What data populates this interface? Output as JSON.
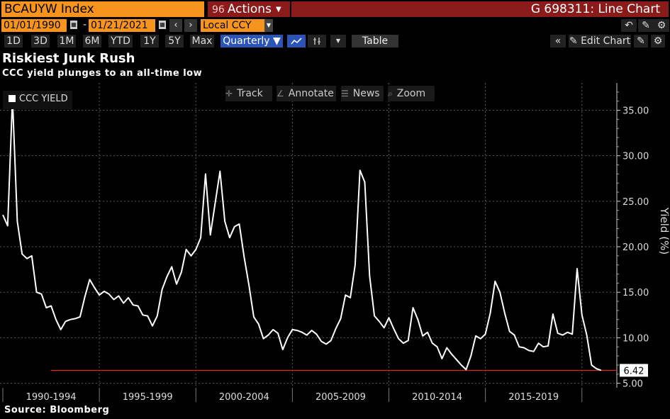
{
  "header": {
    "ticker": "BCAUYW Index",
    "actions_label": "Actions",
    "window_title": "G 698311: Line Chart"
  },
  "range": {
    "start_date": "01/01/1990",
    "end_date": "01/21/2021",
    "currency": "Local CCY"
  },
  "periods": [
    "1D",
    "3D",
    "1M",
    "6M",
    "YTD",
    "1Y",
    "5Y",
    "Max"
  ],
  "toolbar": {
    "frequency": "Quarterly ▼",
    "table_label": "Table",
    "edit_chart_label": "Edit Chart"
  },
  "chart_header": {
    "title": "Riskiest Junk Rush",
    "subtitle": "CCC yield plunges to an all-time low"
  },
  "chart_tools": {
    "track": "Track",
    "annotate": "Annotate",
    "news": "News",
    "zoom": "Zoom"
  },
  "footer": {
    "source": "Source: Bloomberg"
  },
  "colors": {
    "ticker_bg": "#f7941d",
    "title_bar_bg": "#8b1a1a",
    "selected_bg": "#2b54b8",
    "line": "#ffffff",
    "reference_line": "#e2231a"
  },
  "chart_data": {
    "type": "line",
    "legend": [
      "CCC YIELD"
    ],
    "ylabel": "Yield (%)",
    "ylim": [
      4.5,
      38
    ],
    "yticks": [
      5,
      10,
      15,
      20,
      25,
      30,
      35
    ],
    "ytick_labels": [
      "5.00",
      "10.00",
      "15.00",
      "20.00",
      "25.00",
      "30.00",
      "35.00"
    ],
    "x_categories": [
      "1990-1994",
      "1995-1999",
      "2000-2004",
      "2005-2009",
      "2010-2014",
      "2015-2019"
    ],
    "last_value_label": "6.42",
    "last_value": 6.42,
    "series": [
      {
        "name": "CCC YIELD",
        "x": [
          1990.0,
          1990.25,
          1990.5,
          1990.75,
          1991.0,
          1991.25,
          1991.5,
          1991.75,
          1992.0,
          1992.25,
          1992.5,
          1992.75,
          1993.0,
          1993.25,
          1993.5,
          1993.75,
          1994.0,
          1994.25,
          1994.5,
          1994.75,
          1995.0,
          1995.25,
          1995.5,
          1995.75,
          1996.0,
          1996.25,
          1996.5,
          1996.75,
          1997.0,
          1997.25,
          1997.5,
          1997.75,
          1998.0,
          1998.25,
          1998.5,
          1998.75,
          1999.0,
          1999.25,
          1999.5,
          1999.75,
          2000.0,
          2000.25,
          2000.5,
          2000.75,
          2001.0,
          2001.25,
          2001.5,
          2001.75,
          2002.0,
          2002.25,
          2002.5,
          2002.75,
          2003.0,
          2003.25,
          2003.5,
          2003.75,
          2004.0,
          2004.25,
          2004.5,
          2004.75,
          2005.0,
          2005.25,
          2005.5,
          2005.75,
          2006.0,
          2006.25,
          2006.5,
          2006.75,
          2007.0,
          2007.25,
          2007.5,
          2007.75,
          2008.0,
          2008.25,
          2008.5,
          2008.75,
          2009.0,
          2009.25,
          2009.5,
          2009.75,
          2010.0,
          2010.25,
          2010.5,
          2010.75,
          2011.0,
          2011.25,
          2011.5,
          2011.75,
          2012.0,
          2012.25,
          2012.5,
          2012.75,
          2013.0,
          2013.25,
          2013.5,
          2013.75,
          2014.0,
          2014.25,
          2014.5,
          2014.75,
          2015.0,
          2015.25,
          2015.5,
          2015.75,
          2016.0,
          2016.25,
          2016.5,
          2016.75,
          2017.0,
          2017.25,
          2017.5,
          2017.75,
          2018.0,
          2018.25,
          2018.5,
          2018.75,
          2019.0,
          2019.25,
          2019.5,
          2019.75,
          2020.0,
          2020.25,
          2020.5,
          2020.75,
          2021.0
        ],
        "values": [
          23.5,
          22.3,
          36.3,
          22.8,
          19.2,
          18.7,
          19.0,
          15.0,
          14.8,
          13.3,
          13.5,
          12.0,
          10.9,
          11.8,
          12.0,
          12.1,
          12.3,
          14.5,
          16.4,
          15.5,
          14.7,
          15.1,
          14.8,
          14.2,
          14.6,
          13.8,
          14.4,
          13.6,
          13.5,
          12.5,
          12.4,
          11.3,
          12.4,
          15.3,
          16.7,
          17.8,
          15.9,
          17.2,
          19.7,
          19.0,
          19.7,
          21.0,
          28.0,
          21.3,
          24.8,
          28.3,
          22.8,
          21.0,
          22.2,
          22.5,
          18.9,
          15.8,
          12.3,
          11.5,
          9.9,
          10.3,
          10.9,
          10.5,
          8.7,
          10.0,
          10.9,
          10.8,
          10.6,
          10.3,
          10.8,
          10.4,
          9.6,
          9.3,
          9.7,
          11.0,
          12.1,
          14.7,
          14.4,
          18.0,
          28.4,
          27.1,
          16.8,
          12.4,
          11.8,
          11.1,
          12.2,
          11.0,
          9.9,
          9.4,
          9.7,
          13.3,
          12.0,
          10.2,
          10.6,
          9.4,
          9.0,
          7.7,
          8.9,
          8.2,
          7.6,
          7.0,
          6.5,
          8.0,
          10.2,
          9.9,
          10.4,
          12.7,
          16.2,
          15.0,
          12.7,
          10.7,
          10.3,
          9.0,
          8.9,
          8.6,
          8.5,
          9.4,
          9.0,
          9.1,
          12.6,
          10.5,
          10.3,
          10.6,
          10.4,
          17.6,
          12.5,
          10.3,
          7.0,
          6.6,
          6.42
        ]
      }
    ],
    "reference_line": 6.42
  }
}
